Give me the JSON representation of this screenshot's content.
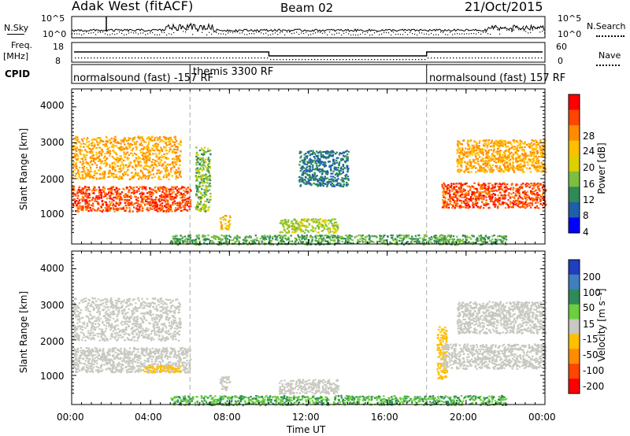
{
  "header": {
    "title": "Adak West (fitACF)",
    "beam": "Beam 02",
    "date": "21/Oct/2015"
  },
  "strips": {
    "nsky_label": "N.Sky",
    "nsky_ticks": [
      "10^5",
      "10^0"
    ],
    "nsearch_label": "N.Search",
    "freq_label": "Freq.",
    "freq_unit": "[MHz]",
    "freq_ticks": [
      "18",
      "8"
    ],
    "nave_label": "Nave",
    "nave_ticks": [
      "60",
      "0"
    ],
    "cpid_label": "CPID",
    "cpid_segments": [
      {
        "label": "normalsound (fast) -157 RF",
        "start": "00:00",
        "end": "06:00"
      },
      {
        "label": "themis 3300 RF",
        "start": "06:00",
        "end": "18:00"
      },
      {
        "label": "normalsound (fast) 157 RF",
        "start": "18:00",
        "end": "24:00"
      }
    ]
  },
  "power_panel": {
    "ylabel": "Slant Range [km]",
    "yticks": [
      "4000",
      "3000",
      "2000",
      "1000"
    ],
    "colorbar_label": "Power [dB]",
    "colorbar_ticks": [
      "28",
      "24",
      "20",
      "16",
      "12",
      "8",
      "4"
    ],
    "colorbar_colors": [
      "#ff0000",
      "#ff4500",
      "#ff8c00",
      "#ffc000",
      "#ddd000",
      "#7cbf3f",
      "#2e8b57",
      "#1f5faa",
      "#0000ff"
    ]
  },
  "velocity_panel": {
    "ylabel": "Slant Range [km]",
    "yticks": [
      "4000",
      "3000",
      "2000",
      "1000"
    ],
    "colorbar_label": "Velocity [m s⁻¹]",
    "colorbar_ticks": [
      "200",
      "100",
      "50",
      "15",
      "-15",
      "-50",
      "-100",
      "-200"
    ],
    "colorbar_colors": [
      "#1f3fbf",
      "#3f7fbf",
      "#2e8b57",
      "#6ccf3f",
      "#c8c8c0",
      "#ffc000",
      "#ff8c00",
      "#ff4500",
      "#ff0000"
    ]
  },
  "xaxis": {
    "ticks": [
      "00:00",
      "04:00",
      "08:00",
      "12:00",
      "16:00",
      "20:00",
      "00:00"
    ],
    "label": "Time UT"
  },
  "chart_data": [
    {
      "type": "heatmap",
      "title": "Adak West (fitACF) Beam 02 21/Oct/2015",
      "quantity": "Power",
      "unit": "dB",
      "xlabel": "Time UT",
      "ylabel": "Slant Range [km]",
      "xlim": [
        "00:00",
        "24:00"
      ],
      "ylim": [
        180,
        4500
      ],
      "clim": [
        0,
        32
      ],
      "scatter_regions": [
        {
          "time_start": "00:00",
          "time_end": "06:00",
          "range_min": 1100,
          "range_max": 1800,
          "power_db": 28
        },
        {
          "time_start": "00:00",
          "time_end": "05:30",
          "range_min": 2000,
          "range_max": 3200,
          "power_db": 22
        },
        {
          "time_start": "06:15",
          "time_end": "07:00",
          "range_min": 1100,
          "range_max": 2900,
          "power_db": 12
        },
        {
          "time_start": "07:30",
          "time_end": "08:00",
          "range_min": 600,
          "range_max": 1000,
          "power_db": 20
        },
        {
          "time_start": "10:30",
          "time_end": "13:30",
          "range_min": 500,
          "range_max": 900,
          "power_db": 14
        },
        {
          "time_start": "11:30",
          "time_end": "14:00",
          "range_min": 1800,
          "range_max": 2800,
          "power_db": 6
        },
        {
          "time_start": "18:45",
          "time_end": "24:00",
          "range_min": 1200,
          "range_max": 1900,
          "power_db": 28
        },
        {
          "time_start": "19:30",
          "time_end": "24:00",
          "range_min": 2200,
          "range_max": 3100,
          "power_db": 22
        },
        {
          "time_start": "05:00",
          "time_end": "22:00",
          "range_min": 180,
          "range_max": 450,
          "power_db": 10
        }
      ]
    },
    {
      "type": "heatmap",
      "quantity": "Velocity",
      "unit": "m s-1",
      "xlabel": "Time UT",
      "ylabel": "Slant Range [km]",
      "xlim": [
        "00:00",
        "24:00"
      ],
      "ylim": [
        180,
        4500
      ],
      "clim": [
        -250,
        250
      ],
      "scatter_regions": [
        {
          "time_start": "00:00",
          "time_end": "06:00",
          "range_min": 1100,
          "range_max": 1800,
          "velocity": 0
        },
        {
          "time_start": "00:00",
          "time_end": "05:30",
          "range_min": 2000,
          "range_max": 3200,
          "velocity": 0
        },
        {
          "time_start": "03:30",
          "time_end": "05:30",
          "range_min": 1100,
          "range_max": 1300,
          "velocity": -60
        },
        {
          "time_start": "07:30",
          "time_end": "08:00",
          "range_min": 600,
          "range_max": 1000,
          "velocity": 0
        },
        {
          "time_start": "10:30",
          "time_end": "13:30",
          "range_min": 500,
          "range_max": 900,
          "velocity": 0
        },
        {
          "time_start": "18:30",
          "time_end": "19:00",
          "range_min": 900,
          "range_max": 2400,
          "velocity": -60
        },
        {
          "time_start": "18:45",
          "time_end": "24:00",
          "range_min": 1200,
          "range_max": 1900,
          "velocity": 0
        },
        {
          "time_start": "19:30",
          "time_end": "24:00",
          "range_min": 2200,
          "range_max": 3100,
          "velocity": 0
        },
        {
          "time_start": "05:00",
          "time_end": "22:00",
          "range_min": 180,
          "range_max": 450,
          "velocity": 30
        }
      ]
    }
  ]
}
